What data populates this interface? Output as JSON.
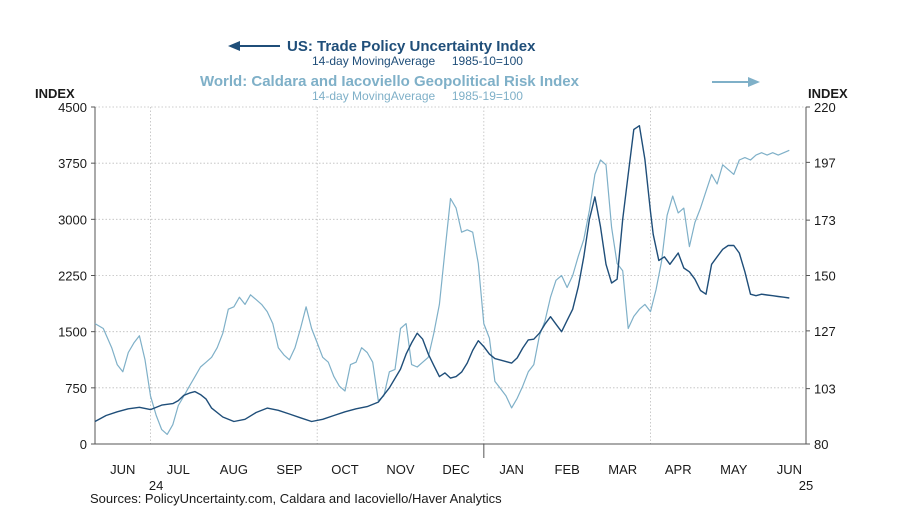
{
  "chart_data": {
    "type": "line",
    "titles": {
      "left_series_title": "US: Trade Policy Uncertainty Index",
      "left_series_subtitle": "14-day MovingAverage     1985-10=100",
      "right_series_title": "World: Caldara and Iacoviello Geopolitical Risk Index",
      "right_series_subtitle": "14-day MovingAverage     1985-19=100"
    },
    "left_axis": {
      "label": "INDEX",
      "min": 0,
      "max": 4500,
      "ticks": [
        0,
        750,
        1500,
        2250,
        3000,
        3750,
        4500
      ]
    },
    "right_axis": {
      "label": "INDEX",
      "min": 80,
      "max": 220,
      "ticks": [
        80,
        103,
        127,
        150,
        173,
        197,
        220
      ]
    },
    "x_axis": {
      "months": [
        "JUN",
        "JUL",
        "AUG",
        "SEP",
        "OCT",
        "NOV",
        "DEC",
        "JAN",
        "FEB",
        "MAR",
        "APR",
        "MAY",
        "JUN"
      ],
      "year_labels": [
        {
          "text": "24",
          "month_index": 0.6
        },
        {
          "text": "25",
          "month_index": 12.3
        }
      ],
      "range": [
        -0.5,
        12.3
      ]
    },
    "colors": {
      "us": "#1f4e79",
      "world": "#7fb0c8",
      "grid": "#bdbdbd",
      "axis": "#555555"
    },
    "series": [
      {
        "name": "US: Trade Policy Uncertainty Index",
        "axis": "left",
        "x": [
          -0.5,
          -0.3,
          -0.1,
          0.1,
          0.3,
          0.5,
          0.7,
          0.9,
          1.0,
          1.1,
          1.2,
          1.3,
          1.4,
          1.5,
          1.6,
          1.8,
          2.0,
          2.2,
          2.4,
          2.6,
          2.8,
          3.0,
          3.2,
          3.4,
          3.6,
          3.8,
          4.0,
          4.2,
          4.4,
          4.6,
          4.8,
          5.0,
          5.1,
          5.2,
          5.3,
          5.4,
          5.5,
          5.6,
          5.7,
          5.8,
          5.9,
          6.0,
          6.1,
          6.2,
          6.3,
          6.4,
          6.5,
          6.6,
          6.7,
          6.8,
          6.9,
          7.0,
          7.1,
          7.2,
          7.3,
          7.4,
          7.5,
          7.6,
          7.7,
          7.8,
          7.9,
          8.0,
          8.1,
          8.2,
          8.3,
          8.4,
          8.5,
          8.6,
          8.7,
          8.8,
          8.9,
          9.0,
          9.1,
          9.2,
          9.3,
          9.4,
          9.5,
          9.55,
          9.65,
          9.75,
          9.85,
          10.0,
          10.1,
          10.2,
          10.3,
          10.4,
          10.5,
          10.6,
          10.7,
          10.8,
          10.9,
          11.0,
          11.1,
          11.2,
          11.3,
          11.4,
          11.5,
          11.6,
          11.7,
          11.8,
          11.9,
          12.0
        ],
        "values": [
          300,
          380,
          430,
          470,
          490,
          460,
          520,
          540,
          580,
          650,
          680,
          700,
          660,
          600,
          480,
          360,
          300,
          330,
          420,
          480,
          450,
          400,
          350,
          300,
          330,
          380,
          430,
          470,
          500,
          560,
          750,
          1000,
          1200,
          1350,
          1480,
          1400,
          1200,
          1050,
          900,
          950,
          880,
          900,
          960,
          1080,
          1250,
          1380,
          1300,
          1200,
          1140,
          1120,
          1100,
          1080,
          1150,
          1280,
          1390,
          1400,
          1480,
          1600,
          1700,
          1600,
          1500,
          1650,
          1800,
          2100,
          2500,
          3000,
          3300,
          2900,
          2400,
          2150,
          2200,
          3000,
          3600,
          4200,
          4250,
          3800,
          3100,
          2800,
          2450,
          2500,
          2400,
          2550,
          2350,
          2300,
          2200,
          2050,
          2000,
          2400,
          2500,
          2600,
          2650,
          2650,
          2550,
          2300,
          2000,
          1980,
          2000,
          1990,
          1980,
          1970,
          1960,
          1950
        ]
      },
      {
        "name": "World: Caldara and Iacoviello Geopolitical Risk Index",
        "axis": "right",
        "x": [
          -0.5,
          -0.35,
          -0.2,
          -0.1,
          0.0,
          0.1,
          0.2,
          0.3,
          0.4,
          0.5,
          0.6,
          0.7,
          0.8,
          0.9,
          1.0,
          1.1,
          1.2,
          1.3,
          1.4,
          1.5,
          1.6,
          1.7,
          1.8,
          1.9,
          2.0,
          2.1,
          2.2,
          2.3,
          2.4,
          2.5,
          2.6,
          2.7,
          2.8,
          2.9,
          3.0,
          3.1,
          3.2,
          3.3,
          3.4,
          3.5,
          3.6,
          3.7,
          3.8,
          3.9,
          4.0,
          4.1,
          4.2,
          4.3,
          4.4,
          4.5,
          4.6,
          4.7,
          4.8,
          4.9,
          5.0,
          5.1,
          5.2,
          5.3,
          5.4,
          5.5,
          5.6,
          5.7,
          5.8,
          5.9,
          6.0,
          6.1,
          6.2,
          6.3,
          6.4,
          6.5,
          6.6,
          6.7,
          6.8,
          6.9,
          7.0,
          7.1,
          7.2,
          7.3,
          7.4,
          7.5,
          7.6,
          7.7,
          7.8,
          7.9,
          8.0,
          8.1,
          8.2,
          8.3,
          8.4,
          8.5,
          8.6,
          8.7,
          8.8,
          8.9,
          9.0,
          9.1,
          9.2,
          9.3,
          9.4,
          9.5,
          9.6,
          9.7,
          9.8,
          9.9,
          10.0,
          10.1,
          10.2,
          10.3,
          10.4,
          10.5,
          10.6,
          10.7,
          10.8,
          10.9,
          11.0,
          11.1,
          11.2,
          11.3,
          11.4,
          11.5,
          11.6,
          11.7,
          11.8,
          11.9,
          12.0
        ],
        "values": [
          130,
          128,
          120,
          113,
          110,
          118,
          122,
          125,
          115,
          100,
          92,
          86,
          84,
          88,
          96,
          100,
          104,
          108,
          112,
          114,
          116,
          120,
          126,
          136,
          137,
          141,
          138,
          142,
          140,
          138,
          135,
          130,
          120,
          117,
          115,
          120,
          128,
          137,
          128,
          122,
          116,
          114,
          108,
          104,
          102,
          113,
          114,
          120,
          118,
          114,
          98,
          100,
          110,
          111,
          128,
          130,
          113,
          112,
          114,
          116,
          126,
          138,
          160,
          182,
          178,
          168,
          169,
          168,
          155,
          130,
          124,
          106,
          103,
          100,
          95,
          99,
          104,
          110,
          113,
          125,
          131,
          141,
          148,
          150,
          145,
          150,
          158,
          165,
          177,
          192,
          198,
          196,
          170,
          155,
          152,
          128,
          133,
          136,
          138,
          135,
          144,
          156,
          175,
          183,
          176,
          178,
          162,
          172,
          178,
          185,
          192,
          188,
          196,
          194,
          192,
          198,
          199,
          198,
          200,
          201,
          200,
          201,
          200,
          201,
          202
        ]
      }
    ],
    "source_text": "Sources:  PolicyUncertainty.com, Caldara and Iacoviello/Haver Analytics"
  }
}
